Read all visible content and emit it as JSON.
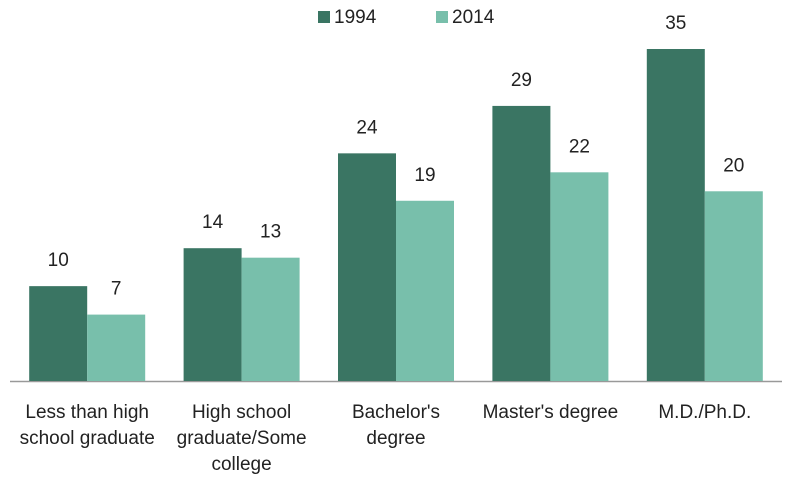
{
  "chart_data": {
    "type": "bar",
    "categories": [
      "Less than high school graduate",
      "High school graduate/Some college",
      "Bachelor's degree",
      "Master's degree",
      "M.D./Ph.D."
    ],
    "series": [
      {
        "name": "1994",
        "color": "#3a7563",
        "values": [
          10,
          14,
          24,
          29,
          35
        ]
      },
      {
        "name": "2014",
        "color": "#78bfab",
        "values": [
          7,
          13,
          19,
          22,
          20
        ]
      }
    ]
  }
}
